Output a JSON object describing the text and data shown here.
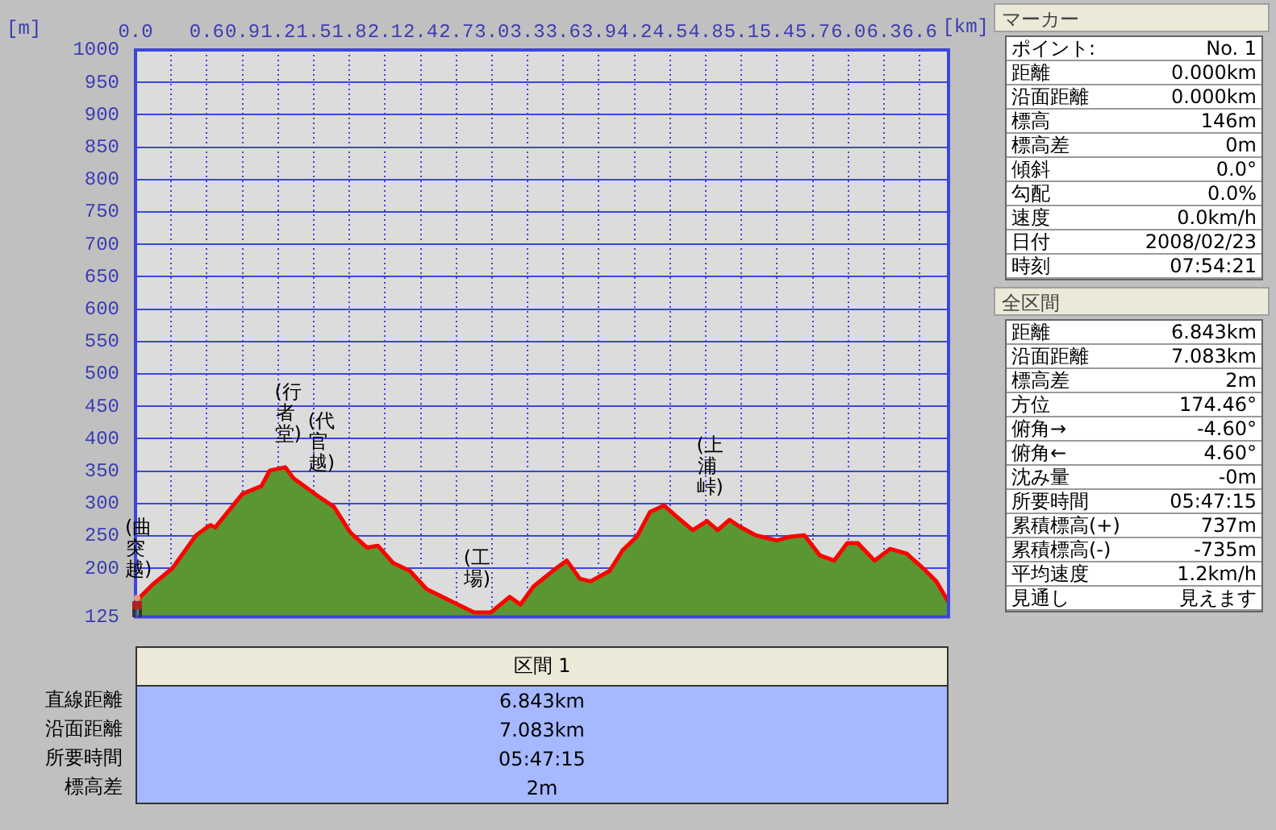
{
  "chart_data": [
    {
      "type": "area",
      "xlabel": "[km]",
      "ylabel": "[m]",
      "xlim": [
        0,
        6.843
      ],
      "ylim": [
        125,
        1000
      ],
      "xticks": [
        {
          "value": 0,
          "label": "0.0"
        },
        {
          "value": 0.3,
          "label": null
        },
        0.6,
        0.9,
        1.2,
        1.5,
        1.8,
        2.1,
        2.4,
        2.7,
        {
          "value": 3,
          "label": "3.0"
        },
        3.3,
        3.6,
        3.9,
        4.2,
        4.5,
        4.8,
        5.1,
        5.4,
        5.7,
        {
          "value": 6,
          "label": "6.0"
        },
        6.3,
        6.6
      ],
      "yticks": [
        125,
        200,
        250,
        300,
        350,
        400,
        450,
        500,
        550,
        600,
        650,
        700,
        750,
        800,
        850,
        900,
        950,
        1000
      ],
      "grid": true,
      "x": [
        0,
        0.04,
        0.15,
        0.31,
        0.51,
        0.63,
        0.67,
        0.9,
        1.06,
        1.13,
        1.26,
        1.33,
        1.54,
        1.67,
        1.81,
        1.95,
        2.04,
        2.17,
        2.31,
        2.45,
        2.67,
        2.85,
        2.99,
        3.15,
        3.24,
        3.35,
        3.54,
        3.63,
        3.74,
        3.83,
        3.99,
        4.1,
        4.22,
        4.33,
        4.45,
        4.56,
        4.69,
        4.81,
        4.9,
        5.0,
        5.08,
        5.22,
        5.4,
        5.51,
        5.63,
        5.76,
        5.88,
        5.99,
        6.08,
        6.22,
        6.35,
        6.49,
        6.63,
        6.74,
        6.843
      ],
      "series": [
        {
          "type": "area",
          "color": "#5a9632",
          "values": [
            146,
            156,
            176,
            200,
            251,
            267,
            263,
            315,
            327,
            351,
            356,
            339,
            311,
            295,
            255,
            232,
            235,
            208,
            196,
            168,
            148,
            132,
            132,
            156,
            144,
            172,
            200,
            212,
            184,
            180,
            196,
            228,
            249,
            287,
            297,
            279,
            259,
            273,
            259,
            275,
            265,
            251,
            243,
            249,
            251,
            220,
            212,
            239,
            239,
            212,
            230,
            223,
            200,
            180,
            148
          ]
        },
        {
          "type": "line",
          "color": "#ff0000",
          "values": [
            146,
            156,
            176,
            200,
            251,
            267,
            263,
            315,
            327,
            351,
            356,
            339,
            311,
            295,
            255,
            232,
            235,
            208,
            196,
            168,
            148,
            132,
            132,
            156,
            144,
            172,
            200,
            212,
            184,
            180,
            196,
            228,
            249,
            287,
            297,
            279,
            259,
            273,
            259,
            275,
            265,
            251,
            243,
            249,
            251,
            220,
            212,
            239,
            239,
            212,
            230,
            223,
            200,
            180,
            148
          ]
        }
      ],
      "annotations": [
        {
          "text": "(曲突越)",
          "x": 0,
          "y": 146
        },
        {
          "text": "(行者堂)",
          "x": 1.26,
          "y": 356
        },
        {
          "text": "(代官越)",
          "x": 1.54,
          "y": 311
        },
        {
          "text": "(工場)",
          "x": 2.85,
          "y": 132
        },
        {
          "text": "(上浦峠)",
          "x": 4.81,
          "y": 273
        }
      ]
    },
    {
      "type": "other",
      "title": "マーカー",
      "annotations": [
        "ポイント:",
        "No. 1",
        "距離",
        "0.000km",
        "沿面距離",
        "0.000km",
        "標高",
        "146m",
        "標高差",
        "0m",
        "傾斜",
        "0.0°",
        "勾配",
        "0.0%",
        "速度",
        "0.0km/h",
        "日付",
        "2008/02/23",
        "時刻",
        "07:54:21"
      ]
    },
    {
      "type": "other",
      "title": "全区間",
      "annotations": [
        "距離",
        "6.843km",
        "沿面距離",
        "7.083km",
        "標高差",
        "2m",
        "方位",
        "174.46°",
        "俯角→",
        "-4.60°",
        "俯角←",
        "4.60°",
        "沈み量",
        "-0m",
        "所要時間",
        "05:47:15",
        "累積標高(+)",
        "737m",
        "累積標高(-)",
        "-735m",
        "平均速度",
        "1.2km/h",
        "見通し",
        "見えます"
      ]
    },
    {
      "type": "other",
      "title": "区間 1",
      "annotations": [
        "直線距離",
        "6.843km",
        "沿面距離",
        "7.083km",
        "所要時間",
        "05:47:15",
        "標高差",
        "2m"
      ]
    }
  ]
}
